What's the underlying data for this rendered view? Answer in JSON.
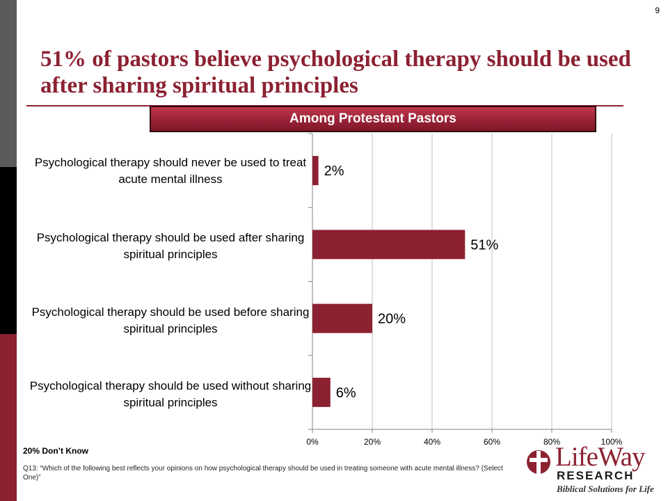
{
  "page_number": "9",
  "title": "51% of pastors believe psychological therapy should be used after sharing spiritual  principles",
  "subtitle_banner": "Among Protestant Pastors",
  "dont_know_note": "20% Don’t Know",
  "question_note": "Q13: “Which of the following best reflects your opinions on how psychological therapy should be used in treating someone with acute mental illness? (Select One)”",
  "logo": {
    "wordmark": "LifeWay",
    "sub": "RESEARCH",
    "tagline": "Biblical Solutions for Life"
  },
  "colors": {
    "brand": "#8c2132",
    "bar": "#8c2132",
    "grid": "#bfbfbf"
  },
  "chart_data": {
    "type": "bar",
    "orientation": "horizontal",
    "categories": [
      "Psychological therapy should never be used to treat acute mental illness",
      "Psychological therapy should be used after sharing spiritual principles",
      "Psychological therapy should be used before sharing spiritual principles",
      "Psychological therapy should be used without sharing spiritual principles"
    ],
    "values": [
      2,
      51,
      20,
      6
    ],
    "data_labels": [
      "2%",
      "51%",
      "20%",
      "6%"
    ],
    "xlim": [
      0,
      100
    ],
    "xticks": [
      0,
      20,
      40,
      60,
      80,
      100
    ],
    "xtick_labels": [
      "0%",
      "20%",
      "40%",
      "60%",
      "80%",
      "100%"
    ],
    "grid": true,
    "legend": "none",
    "title": "",
    "xlabel": "",
    "ylabel": ""
  }
}
